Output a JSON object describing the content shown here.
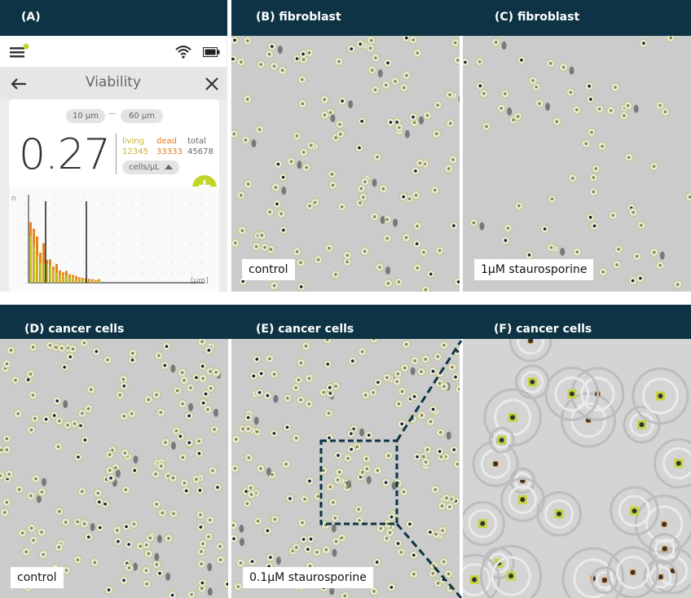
{
  "headers": {
    "a": "(A)",
    "b": "(B) fibroblast",
    "c": "(C) fibroblast",
    "d": "(D) cancer cells",
    "e": "(E) cancer cells",
    "f": "(F) cancer cells"
  },
  "captions": {
    "b": "control",
    "c": "1μM staurosporine",
    "d": "control",
    "e": "0.1μM staurosporine"
  },
  "app": {
    "title": "Viability",
    "range_min": "10 µm",
    "range_sep": "—",
    "range_max": "60 µm",
    "viability_value": "0.27",
    "living_label": "living",
    "living_value": "12345",
    "dead_label": "dead",
    "dead_value": "33333",
    "total_label": "total",
    "total_value": "45678",
    "unit_selector": "cells/µL",
    "y_axis_label": "n",
    "x_axis_label": "[µm]",
    "add_label": "+"
  },
  "colors": {
    "header_bg": "#0d3344",
    "accent_green": "#c3d42a",
    "living": "#c9b22a",
    "dead": "#e07a1a",
    "living_bar": "#b9c52f",
    "dead_bar": "#e8861e"
  },
  "icons": {
    "menu": "hamburger-menu-icon",
    "wifi": "wifi-icon",
    "battery": "battery-icon",
    "back": "back-arrow-icon",
    "close": "close-icon",
    "dropdown": "triangle-up-icon",
    "add": "add-circle-icon"
  }
}
